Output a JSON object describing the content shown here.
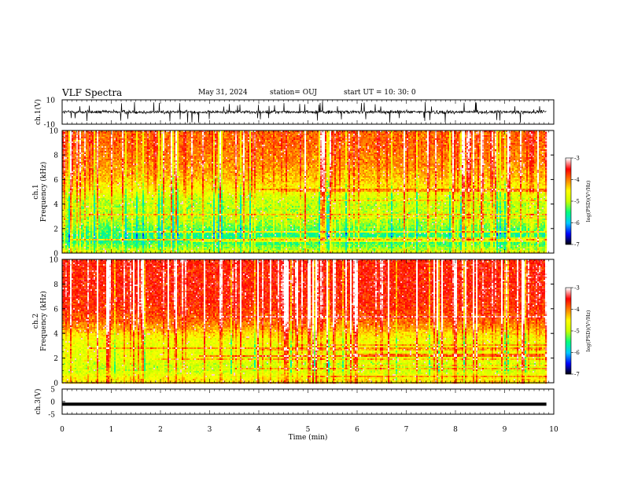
{
  "header": {
    "title": "VLF Spectra",
    "date": "May 31, 2024",
    "station": "station= OUJ",
    "start": "start  UT =   10: 30: 0"
  },
  "chart_data": [
    {
      "type": "line",
      "panel": "waveform-ch1",
      "ylabel": "ch.1(V)",
      "ylim": [
        -10,
        10
      ],
      "yticks": [
        "10",
        "-10"
      ],
      "xlim": [
        0,
        10
      ],
      "data_end_min": 9.85,
      "baseline": 0,
      "typical_amplitude": 3,
      "max_spike": 9
    },
    {
      "type": "heatmap",
      "panel": "spectrogram-ch1",
      "xlabel": "Time  (min)",
      "ylabel_line1": "ch.1",
      "ylabel_line2": "Frequency  (kHz)",
      "ylim": [
        0,
        10
      ],
      "yticks": [
        "0",
        "2",
        "4",
        "6",
        "8",
        "10"
      ],
      "xlim": [
        0,
        9.85
      ],
      "colorbar": {
        "label": "log(PSD)(V²/Hz)",
        "range": [
          -7,
          -3
        ],
        "ticks": [
          "-3",
          "-4",
          "-5",
          "-6",
          "-7"
        ]
      },
      "profile_freq_khz": [
        0,
        0.5,
        1.0,
        1.5,
        2.0,
        2.5,
        3.0,
        3.5,
        4.0,
        4.5,
        5.0,
        6.0,
        7.0,
        8.0,
        9.0,
        10.0
      ],
      "profile_log_psd": [
        -4.8,
        -5.2,
        -5.5,
        -5.5,
        -5.3,
        -5.1,
        -5.0,
        -5.0,
        -5.0,
        -4.9,
        -4.6,
        -4.3,
        -4.1,
        -4.0,
        -3.9,
        -3.9
      ],
      "stripe_pattern": "many broadband vertical stripes (sferics)"
    },
    {
      "type": "heatmap",
      "panel": "spectrogram-ch2",
      "xlabel": "Time  (min)",
      "ylabel_line1": "ch.2",
      "ylabel_line2": "Frequency  (kHz)",
      "ylim": [
        0,
        10
      ],
      "yticks": [
        "0",
        "2",
        "4",
        "6",
        "8",
        "10"
      ],
      "xlim": [
        0,
        9.85
      ],
      "colorbar": {
        "label": "log(PSD)(V²/Hz)",
        "range": [
          -7,
          -3
        ],
        "ticks": [
          "-3",
          "-4",
          "-5",
          "-6",
          "-7"
        ]
      },
      "profile_freq_khz": [
        0,
        0.5,
        1.0,
        1.5,
        2.0,
        2.5,
        3.0,
        3.5,
        4.0,
        4.5,
        5.0,
        6.0,
        7.0,
        8.0,
        9.0,
        10.0
      ],
      "profile_log_psd": [
        -4.3,
        -4.6,
        -4.9,
        -4.9,
        -4.7,
        -4.7,
        -4.7,
        -4.6,
        -4.4,
        -4.1,
        -3.9,
        -3.7,
        -3.6,
        -3.6,
        -3.6,
        -3.6
      ],
      "stripe_pattern": "many broadband vertical stripes (sferics)"
    },
    {
      "type": "line",
      "panel": "waveform-ch3",
      "ylabel": "ch.3(V)",
      "ylim": [
        -5,
        5
      ],
      "yticks": [
        "5",
        "0",
        "-5"
      ],
      "xlim": [
        0,
        10
      ],
      "data_end_min": 9.85,
      "constant_value": -1.0
    }
  ],
  "xaxis": {
    "label": "Time  (min)",
    "range": [
      0,
      10
    ],
    "ticks": [
      "0",
      "1",
      "2",
      "3",
      "4",
      "5",
      "6",
      "7",
      "8",
      "9",
      "10"
    ]
  },
  "colors": {
    "colormap": [
      "#000000",
      "#0000ff",
      "#00c8ff",
      "#00ff80",
      "#c8ff00",
      "#ffff00",
      "#ff8000",
      "#ff0000",
      "#ffffff"
    ],
    "waveform": "#000000",
    "axis": "#000000"
  }
}
